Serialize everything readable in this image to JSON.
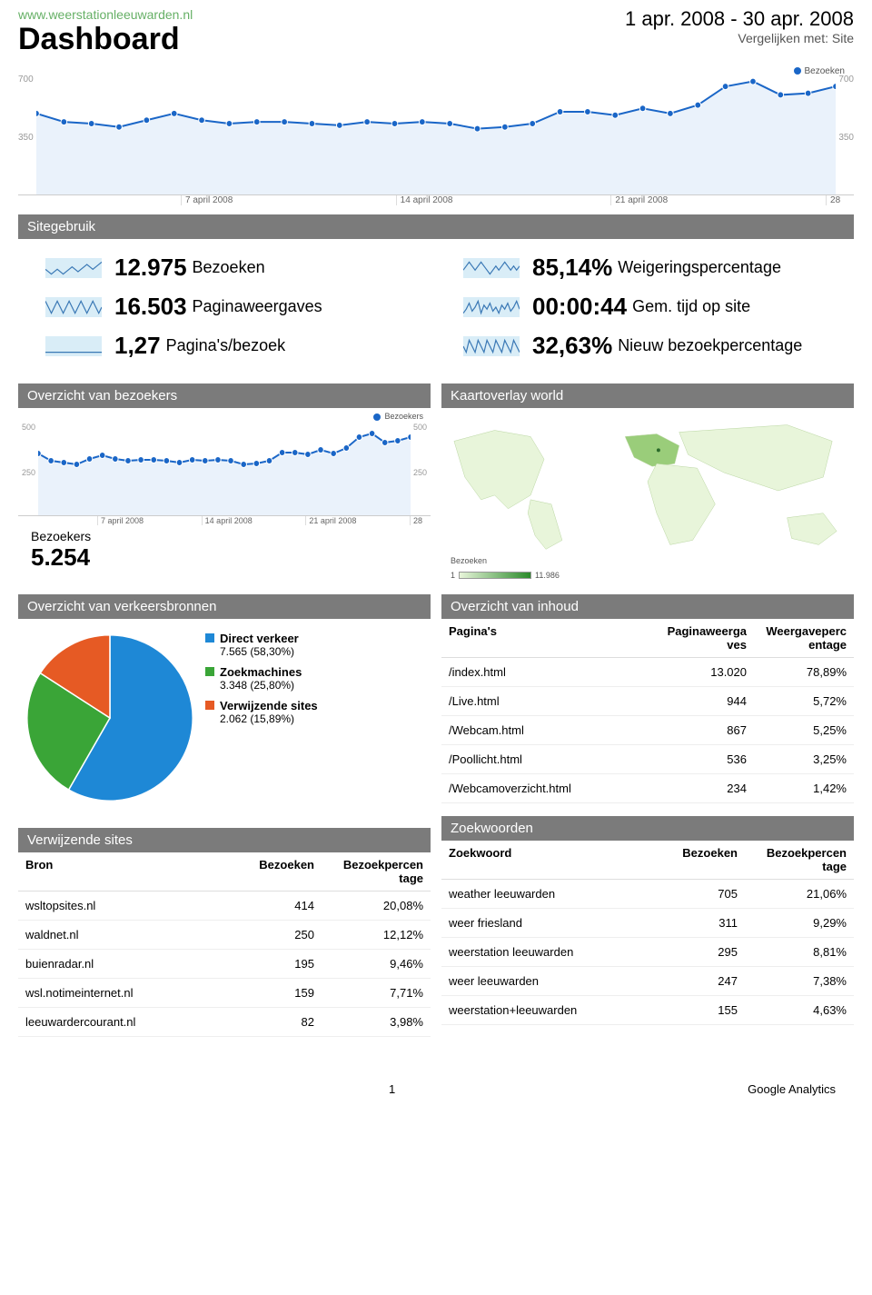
{
  "header": {
    "site_url": "www.weerstationleeuwarden.nl",
    "title": "Dashboard",
    "date_range": "1 apr. 2008 - 30 apr. 2008",
    "compare_text": "Vergelijken met: Site"
  },
  "main_chart": {
    "type": "line",
    "legend_label": "Bezoeken",
    "y_ticks": [
      "700",
      "350"
    ],
    "x_ticks": [
      "7 april 2008",
      "14 april 2008",
      "21 april 2008",
      "28"
    ],
    "ylim": [
      0,
      700
    ],
    "line_color": "#1a66c7",
    "fill_color": "#eaf2fb",
    "marker_color": "#1a66c7",
    "grid_color": "#dddddd",
    "values": [
      480,
      430,
      420,
      400,
      440,
      480,
      440,
      420,
      430,
      430,
      420,
      410,
      430,
      420,
      430,
      420,
      390,
      400,
      420,
      490,
      490,
      470,
      510,
      480,
      530,
      640,
      670,
      590,
      600,
      640
    ]
  },
  "sitegebruik": {
    "bar_title": "Sitegebruik",
    "metrics": [
      {
        "value": "12.975",
        "label": "Bezoeken"
      },
      {
        "value": "85,14%",
        "label": "Weigeringspercentage"
      },
      {
        "value": "16.503",
        "label": "Paginaweergaves"
      },
      {
        "value": "00:00:44",
        "label": "Gem. tijd op site"
      },
      {
        "value": "1,27",
        "label": "Pagina's/bezoek"
      },
      {
        "value": "32,63%",
        "label": "Nieuw bezoekpercentage"
      }
    ],
    "spark_bg": "#d9edf7",
    "spark_line": "#3a78b5"
  },
  "bezoekers": {
    "bar_title": "Overzicht van bezoekers",
    "chart": {
      "legend_label": "Bezoekers",
      "y_ticks": [
        "500",
        "250"
      ],
      "x_ticks": [
        "7 april 2008",
        "14 april 2008",
        "21 april 2008",
        "28"
      ],
      "ylim": [
        0,
        500
      ],
      "line_color": "#1a66c7",
      "fill_color": "#eaf2fb",
      "marker_color": "#1a66c7",
      "values": [
        340,
        300,
        290,
        280,
        310,
        330,
        310,
        300,
        305,
        305,
        300,
        290,
        305,
        300,
        305,
        300,
        280,
        285,
        300,
        345,
        345,
        335,
        360,
        340,
        370,
        430,
        450,
        400,
        410,
        430
      ]
    },
    "label": "Bezoekers",
    "value": "5.254"
  },
  "map": {
    "bar_title": "Kaartoverlay world",
    "scale_label": "Bezoeken",
    "scale_min": "1",
    "scale_max": "11.986",
    "base_fill": "#e8f5da",
    "stroke": "#b8d4a0"
  },
  "verkeersbronnen": {
    "bar_title": "Overzicht van verkeersbronnen",
    "pie": {
      "type": "pie",
      "slices": [
        {
          "label": "Direct verkeer",
          "sub": "7.565 (58,30%)",
          "pct": 58.3,
          "color": "#1e88d6"
        },
        {
          "label": "Zoekmachines",
          "sub": "3.348 (25,80%)",
          "pct": 25.8,
          "color": "#3aa537"
        },
        {
          "label": "Verwijzende sites",
          "sub": "2.062 (15,89%)",
          "pct": 15.89,
          "color": "#e65a24"
        }
      ]
    }
  },
  "verwijzende": {
    "bar_title": "Verwijzende sites",
    "columns": [
      "Bron",
      "Bezoeken",
      "Bezoekpercentage"
    ],
    "rows": [
      [
        "wsltopsites.nl",
        "414",
        "20,08%"
      ],
      [
        "waldnet.nl",
        "250",
        "12,12%"
      ],
      [
        "buienradar.nl",
        "195",
        "9,46%"
      ],
      [
        "wsl.notimeinternet.nl",
        "159",
        "7,71%"
      ],
      [
        "leeuwardercourant.nl",
        "82",
        "3,98%"
      ]
    ]
  },
  "inhoud": {
    "bar_title": "Overzicht van inhoud",
    "columns": [
      "Pagina's",
      "Paginaweergaves",
      "Weergavepercentage"
    ],
    "rows": [
      [
        "/index.html",
        "13.020",
        "78,89%"
      ],
      [
        "/Live.html",
        "944",
        "5,72%"
      ],
      [
        "/Webcam.html",
        "867",
        "5,25%"
      ],
      [
        "/Poollicht.html",
        "536",
        "3,25%"
      ],
      [
        "/Webcamoverzicht.html",
        "234",
        "1,42%"
      ]
    ]
  },
  "zoekwoorden": {
    "bar_title": "Zoekwoorden",
    "columns": [
      "Zoekwoord",
      "Bezoeken",
      "Bezoekpercentage"
    ],
    "rows": [
      [
        "weather leeuwarden",
        "705",
        "21,06%"
      ],
      [
        "weer friesland",
        "311",
        "9,29%"
      ],
      [
        "weerstation leeuwarden",
        "295",
        "8,81%"
      ],
      [
        "weer leeuwarden",
        "247",
        "7,38%"
      ],
      [
        "weerstation+leeuwarden",
        "155",
        "4,63%"
      ]
    ]
  },
  "footer": {
    "page": "1",
    "brand": "Google Analytics"
  }
}
